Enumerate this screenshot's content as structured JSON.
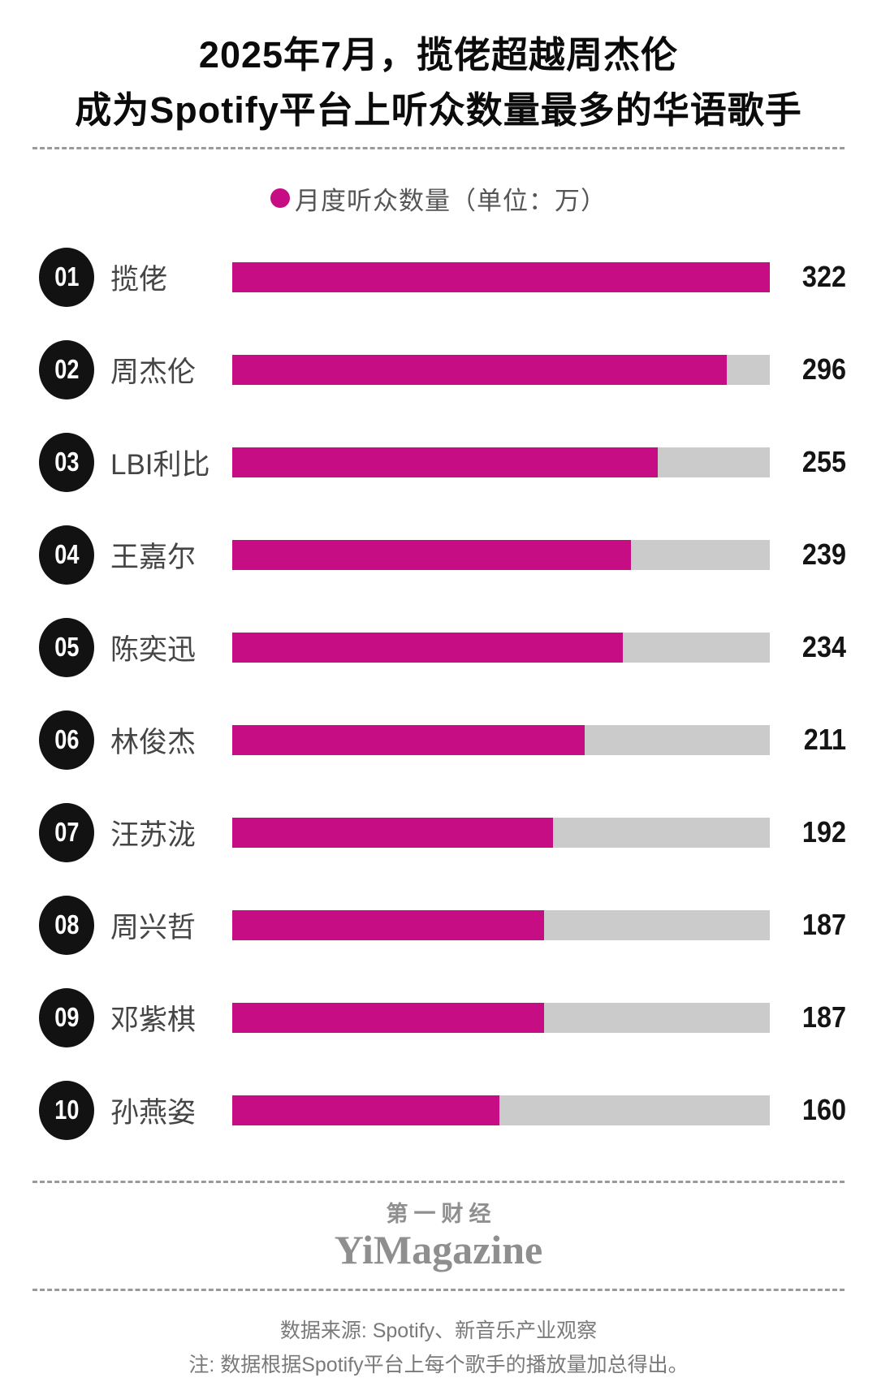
{
  "title": {
    "line1": "2025年7月，揽佬超越周杰伦",
    "line2": "成为Spotify平台上听众数量最多的华语歌手"
  },
  "legend": {
    "label": "月度听众数量（单位：万）"
  },
  "chart_data": {
    "type": "bar",
    "orientation": "horizontal",
    "title": "2025年7月，揽佬超越周杰伦 成为Spotify平台上听众数量最多的华语歌手",
    "legend_label": "月度听众数量（单位：万）",
    "unit": "万",
    "xlim": [
      0,
      322
    ],
    "max_value": 322,
    "grid": false,
    "categories": [
      "揽佬",
      "周杰伦",
      "LBI利比",
      "王嘉尔",
      "陈奕迅",
      "林俊杰",
      "汪苏泷",
      "周兴哲",
      "邓紫棋",
      "孙燕姿"
    ],
    "values": [
      322,
      296,
      255,
      239,
      234,
      211,
      192,
      187,
      187,
      160
    ],
    "rows": [
      {
        "rank": "01",
        "name": "揽佬",
        "value": 322
      },
      {
        "rank": "02",
        "name": "周杰伦",
        "value": 296
      },
      {
        "rank": "03",
        "name": "LBI利比",
        "value": 255
      },
      {
        "rank": "04",
        "name": "王嘉尔",
        "value": 239
      },
      {
        "rank": "05",
        "name": "陈奕迅",
        "value": 234
      },
      {
        "rank": "06",
        "name": "林俊杰",
        "value": 211
      },
      {
        "rank": "07",
        "name": "汪苏泷",
        "value": 192
      },
      {
        "rank": "08",
        "name": "周兴哲",
        "value": 187
      },
      {
        "rank": "09",
        "name": "邓紫棋",
        "value": 187
      },
      {
        "rank": "10",
        "name": "孙燕姿",
        "value": 160
      }
    ]
  },
  "colors": {
    "bar_fill": "#c70d84",
    "bar_track": "#cbcbcb",
    "badge": "#121212"
  },
  "footer": {
    "logo_line1": "第一财经",
    "logo_line2": "YiMagazine",
    "source": "数据来源: Spotify、新音乐产业观察",
    "note": "注: 数据根据Spotify平台上每个歌手的播放量加总得出。"
  }
}
